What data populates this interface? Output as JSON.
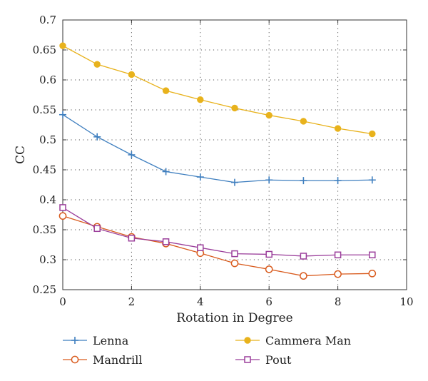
{
  "chart_data": {
    "type": "line",
    "title": "",
    "xlabel": "Rotation in Degree",
    "ylabel": "CC",
    "xlim": [
      0,
      10
    ],
    "ylim": [
      0.25,
      0.7
    ],
    "xticks": [
      0,
      2,
      4,
      6,
      8,
      10
    ],
    "xtick_labels": [
      "0",
      "2",
      "4",
      "6",
      "8",
      "10"
    ],
    "yticks": [
      0.25,
      0.3,
      0.35,
      0.4,
      0.45,
      0.5,
      0.55,
      0.6,
      0.65,
      0.7
    ],
    "ytick_labels": [
      "0.25",
      "0.3",
      "0.35",
      "0.4",
      "0.45",
      "0.5",
      "0.55",
      "0.6",
      "0.65",
      "0.7"
    ],
    "grid": true,
    "legend_position": "bottom",
    "x": [
      0,
      1,
      2,
      3,
      4,
      5,
      6,
      7,
      8,
      9
    ],
    "series": [
      {
        "name": "Lenna",
        "color": "#3f7fbf",
        "marker": "plus",
        "values": [
          0.542,
          0.505,
          0.475,
          0.447,
          0.438,
          0.429,
          0.433,
          0.432,
          0.432,
          0.433
        ]
      },
      {
        "name": "Cammera Man",
        "color": "#e8b21c",
        "marker": "filled-circle",
        "values": [
          0.657,
          0.626,
          0.609,
          0.582,
          0.567,
          0.553,
          0.541,
          0.531,
          0.519,
          0.51
        ]
      },
      {
        "name": "Mandrill",
        "color": "#d95c1f",
        "marker": "open-circle",
        "values": [
          0.373,
          0.355,
          0.338,
          0.327,
          0.311,
          0.294,
          0.284,
          0.273,
          0.276,
          0.277
        ]
      },
      {
        "name": "Pout",
        "color": "#9b3f9b",
        "marker": "open-square",
        "values": [
          0.387,
          0.352,
          0.336,
          0.33,
          0.32,
          0.31,
          0.309,
          0.306,
          0.308,
          0.308
        ]
      }
    ]
  }
}
